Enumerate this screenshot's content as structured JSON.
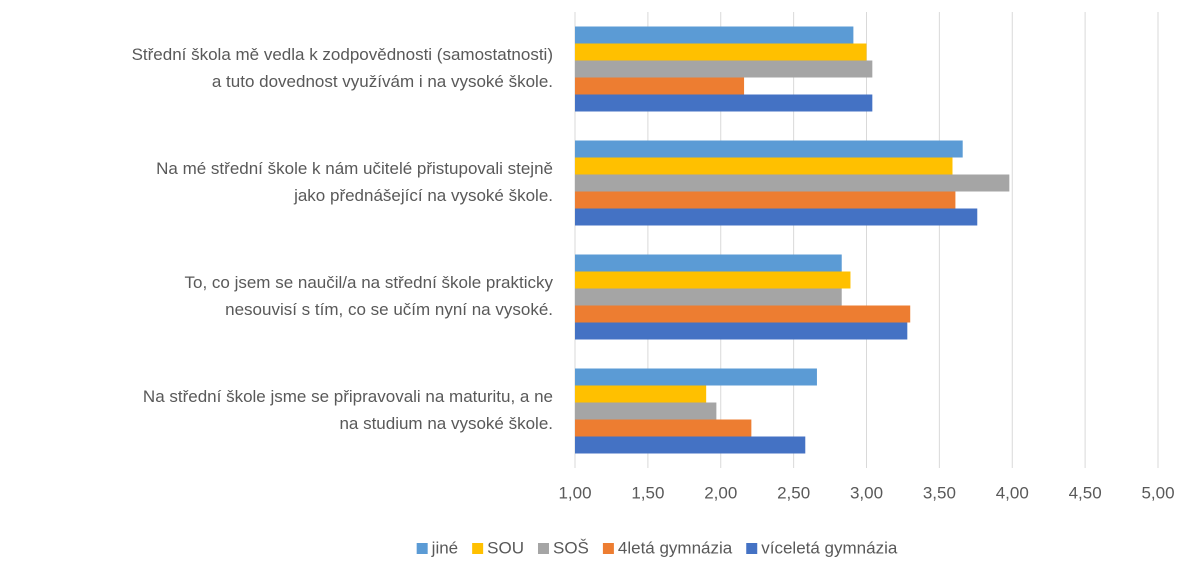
{
  "chart_data": {
    "type": "bar",
    "orientation": "horizontal",
    "categories": [
      [
        "Střední škola mě vedla k zodpovědnosti (samostatnosti)",
        "a tuto dovednost využívám i na vysoké škole."
      ],
      [
        "Na mé střední škole k nám učitelé přistupovali stejně",
        "jako přednášející na vysoké škole."
      ],
      [
        "To, co jsem se naučil/a na střední škole prakticky",
        "nesouvisí s tím, co se učím nyní na vysoké."
      ],
      [
        "Na střední škole jsme se připravovali na maturitu, a ne",
        "na studium na vysoké škole."
      ]
    ],
    "series": [
      {
        "name": "jiné",
        "color": "#5b9bd5",
        "values": [
          2.91,
          3.66,
          2.83,
          2.66
        ]
      },
      {
        "name": "SOU",
        "color": "#ffc000",
        "values": [
          3.0,
          3.59,
          2.89,
          1.9
        ]
      },
      {
        "name": "SOŠ",
        "color": "#a5a5a5",
        "values": [
          3.04,
          3.98,
          2.83,
          1.97
        ]
      },
      {
        "name": "4letá gymnázia",
        "color": "#ed7d31",
        "values": [
          2.16,
          3.61,
          3.3,
          2.21
        ]
      },
      {
        "name": "víceletá gymnázia",
        "color": "#4472c4",
        "values": [
          3.04,
          3.76,
          3.28,
          2.58
        ]
      }
    ],
    "xlim": [
      1,
      5
    ],
    "xticks": [
      {
        "value": 1,
        "label": "1,00"
      },
      {
        "value": 1.5,
        "label": "1,50"
      },
      {
        "value": 2,
        "label": "2,00"
      },
      {
        "value": 2.5,
        "label": "2,50"
      },
      {
        "value": 3,
        "label": "3,00"
      },
      {
        "value": 3.5,
        "label": "3,50"
      },
      {
        "value": 4,
        "label": "4,00"
      },
      {
        "value": 4.5,
        "label": "4,50"
      },
      {
        "value": 5,
        "label": "5,00"
      }
    ],
    "grid": true,
    "legend": "bottom"
  }
}
